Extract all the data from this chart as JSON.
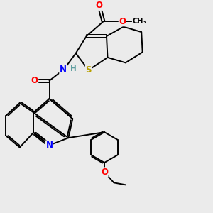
{
  "background_color": "#ebebeb",
  "atom_colors": {
    "S": "#b8a000",
    "N": "#0000ff",
    "O": "#ff0000",
    "C": "#000000",
    "H": "#5f9ea0"
  },
  "lw": 1.4,
  "fs": 7.5
}
